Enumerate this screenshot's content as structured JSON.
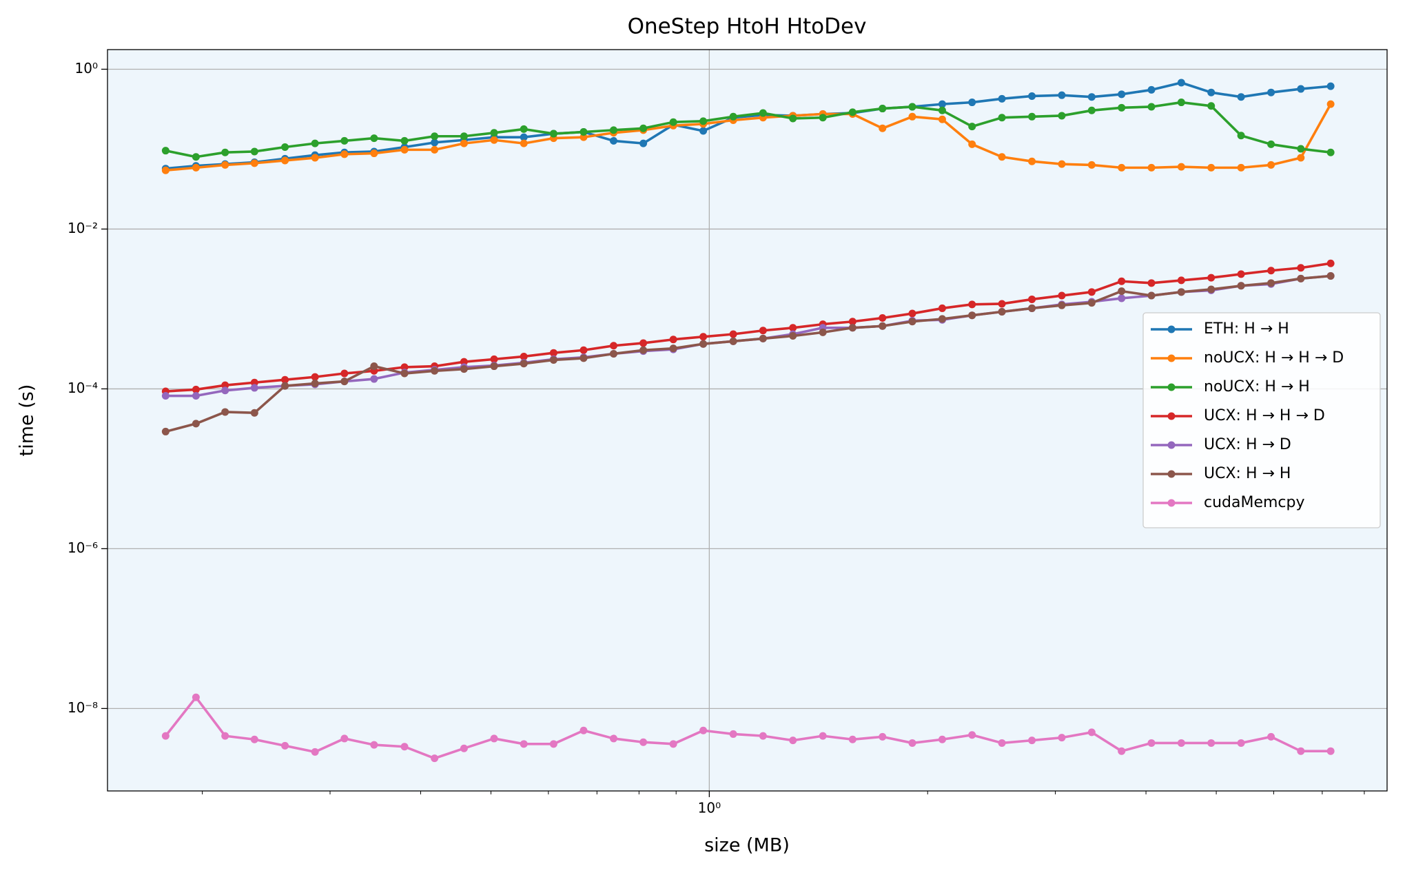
{
  "chart_data": {
    "type": "line",
    "title": "OneStep HtoH HtoDev",
    "xlabel": "size (MB)",
    "ylabel": "time (s)",
    "xscale": "log",
    "yscale": "log",
    "grid": true,
    "legend": "center right",
    "background": "#eef6fc",
    "xlim": [
      0.148,
      8.6
    ],
    "ylim": [
      9.3e-10,
      1.76
    ],
    "xticks": [
      {
        "value": 1,
        "label": "10⁰"
      }
    ],
    "xminorticks": [
      0.2,
      0.3,
      0.4,
      0.5,
      0.6,
      0.7,
      0.8,
      0.9,
      2,
      3,
      4,
      5,
      6,
      7,
      8
    ],
    "yticks": [
      {
        "value": 1,
        "label": "10⁰"
      },
      {
        "value": 0.01,
        "label": "10⁻²"
      },
      {
        "value": 0.0001,
        "label": "10⁻⁴"
      },
      {
        "value": 1e-06,
        "label": "10⁻⁶"
      },
      {
        "value": 1e-08,
        "label": "10⁻⁸"
      }
    ],
    "x": [
      0.178,
      0.196,
      0.215,
      0.236,
      0.26,
      0.286,
      0.314,
      0.345,
      0.38,
      0.418,
      0.459,
      0.505,
      0.555,
      0.61,
      0.671,
      0.738,
      0.811,
      0.892,
      0.981,
      1.079,
      1.186,
      1.304,
      1.434,
      1.576,
      1.733,
      1.905,
      2.095,
      2.303,
      2.532,
      2.785,
      3.062,
      3.367,
      3.702,
      4.07,
      4.475,
      4.92,
      5.41,
      5.95,
      6.54,
      7.19
    ],
    "series": [
      {
        "name": "ETH: H → H",
        "color": "#1f77b4",
        "values": [
          0.0571,
          0.0618,
          0.065,
          0.0685,
          0.0759,
          0.0841,
          0.091,
          0.0933,
          0.106,
          0.121,
          0.13,
          0.141,
          0.141,
          0.156,
          0.164,
          0.127,
          0.118,
          0.202,
          0.169,
          0.248,
          0.268,
          0.262,
          0.275,
          0.283,
          0.322,
          0.339,
          0.366,
          0.385,
          0.427,
          0.461,
          0.473,
          0.45,
          0.486,
          0.552,
          0.679,
          0.512,
          0.45,
          0.512,
          0.567,
          0.613
        ]
      },
      {
        "name": "noUCX: H → H → D",
        "color": "#ff7f0e",
        "values": [
          0.0543,
          0.0586,
          0.0634,
          0.0667,
          0.0721,
          0.0779,
          0.0863,
          0.0886,
          0.0982,
          0.0982,
          0.118,
          0.13,
          0.118,
          0.137,
          0.141,
          0.16,
          0.173,
          0.197,
          0.207,
          0.23,
          0.248,
          0.262,
          0.275,
          0.275,
          0.182,
          0.255,
          0.236,
          0.115,
          0.0799,
          0.0703,
          0.065,
          0.0634,
          0.0586,
          0.0586,
          0.0601,
          0.0586,
          0.0586,
          0.0634,
          0.0779,
          0.366
        ]
      },
      {
        "name": "noUCX: H → H",
        "color": "#2ca02c",
        "values": [
          0.0957,
          0.0799,
          0.091,
          0.0933,
          0.106,
          0.118,
          0.127,
          0.137,
          0.127,
          0.145,
          0.145,
          0.16,
          0.178,
          0.156,
          0.164,
          0.173,
          0.182,
          0.218,
          0.224,
          0.255,
          0.283,
          0.242,
          0.248,
          0.29,
          0.322,
          0.339,
          0.305,
          0.192,
          0.248,
          0.255,
          0.262,
          0.305,
          0.33,
          0.339,
          0.385,
          0.347,
          0.148,
          0.115,
          0.101,
          0.091
        ]
      },
      {
        "name": "UCX: H → H → D",
        "color": "#d62728",
        "values": [
          9.31e-05,
          9.8e-05,
          0.000111,
          0.00012,
          0.00013,
          0.000141,
          0.000156,
          0.000168,
          0.000187,
          0.000192,
          0.000218,
          0.000235,
          0.000254,
          0.000282,
          0.000305,
          0.000347,
          0.000374,
          0.000415,
          0.000449,
          0.000484,
          0.000537,
          0.000581,
          0.000644,
          0.000695,
          0.000771,
          0.000877,
          0.00102,
          0.00114,
          0.00116,
          0.00132,
          0.00147,
          0.00163,
          0.00222,
          0.00211,
          0.00228,
          0.00246,
          0.00273,
          0.00302,
          0.00327,
          0.00372
        ]
      },
      {
        "name": "UCX: H → D",
        "color": "#9467bd",
        "values": [
          8.18e-05,
          8.18e-05,
          9.54e-05,
          0.000103,
          0.000109,
          0.000114,
          0.000124,
          0.000133,
          0.00016,
          0.000173,
          0.000187,
          0.000196,
          0.000212,
          0.000235,
          0.000248,
          0.000275,
          0.000297,
          0.000312,
          0.000365,
          0.000394,
          0.000426,
          0.000484,
          0.000581,
          0.000581,
          0.000611,
          0.000713,
          0.000731,
          0.000832,
          0.000922,
          0.00102,
          0.00114,
          0.00123,
          0.00136,
          0.00147,
          0.00163,
          0.00171,
          0.00195,
          0.00205,
          0.0024,
          0.00259
        ]
      },
      {
        "name": "UCX: H → H",
        "color": "#8c564b",
        "values": [
          2.92e-05,
          3.67e-05,
          5.14e-05,
          5.01e-05,
          0.000109,
          0.000117,
          0.000124,
          0.000192,
          0.000156,
          0.000168,
          0.000177,
          0.000192,
          0.000207,
          0.00023,
          0.000242,
          0.000275,
          0.000305,
          0.000321,
          0.000365,
          0.000394,
          0.000426,
          0.00046,
          0.00051,
          0.000581,
          0.000611,
          0.000695,
          0.000751,
          0.000832,
          0.000922,
          0.00102,
          0.00111,
          0.00119,
          0.00167,
          0.00147,
          0.00163,
          0.00176,
          0.00195,
          0.00211,
          0.0024,
          0.00259
        ]
      },
      {
        "name": "cudaMemcpy",
        "color": "#e377c2",
        "values": [
          4.54e-09,
          1.38e-08,
          4.54e-09,
          4.1e-09,
          3.42e-09,
          2.86e-09,
          4.21e-09,
          3.51e-09,
          3.33e-09,
          2.38e-09,
          3.17e-09,
          4.21e-09,
          3.6e-09,
          3.6e-09,
          5.31e-09,
          4.21e-09,
          3.79e-09,
          3.6e-09,
          5.31e-09,
          4.79e-09,
          4.54e-09,
          3.99e-09,
          4.54e-09,
          4.1e-09,
          4.43e-09,
          3.7e-09,
          4.1e-09,
          4.67e-09,
          3.7e-09,
          3.99e-09,
          4.32e-09,
          5.04e-09,
          2.93e-09,
          3.7e-09,
          3.7e-09,
          3.7e-09,
          3.7e-09,
          4.43e-09,
          2.93e-09,
          2.93e-09
        ]
      }
    ]
  }
}
